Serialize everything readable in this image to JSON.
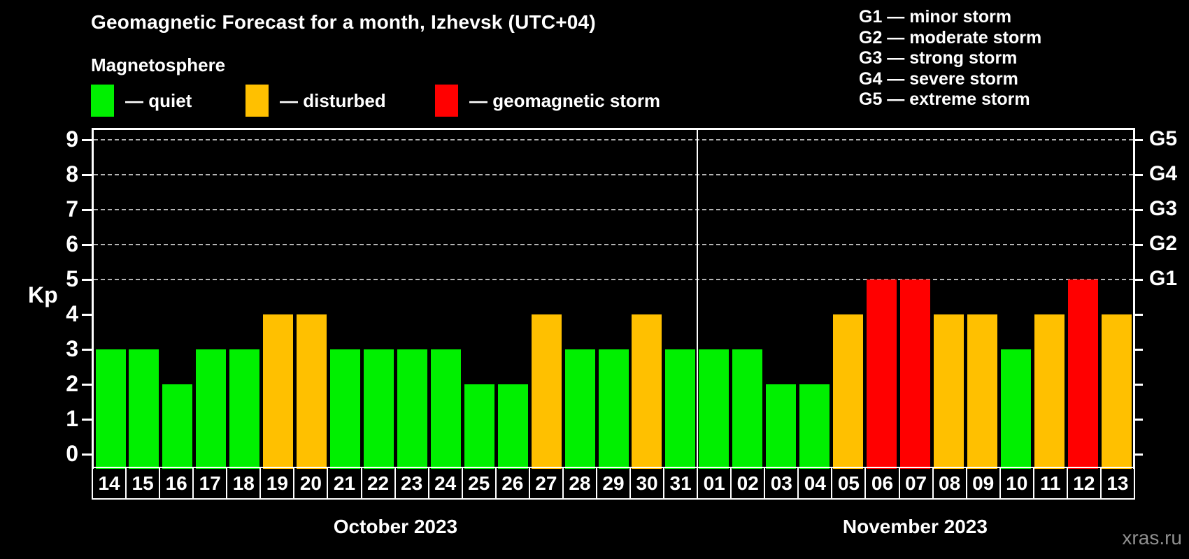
{
  "title": "Geomagnetic Forecast for a month, Izhevsk (UTC+04)",
  "subtitle": "Magnetosphere",
  "legend": {
    "items": [
      {
        "name": "quiet",
        "label": "— quiet",
        "color": "#00f000"
      },
      {
        "name": "disturbed",
        "label": "— disturbed",
        "color": "#ffc000"
      },
      {
        "name": "storm",
        "label": "— geomagnetic storm",
        "color": "#ff0000"
      }
    ]
  },
  "g_legend": {
    "lines": [
      "G1 — minor storm",
      "G2 — moderate storm",
      "G3 — strong storm",
      "G4 — severe storm",
      "G5 — extreme storm"
    ]
  },
  "watermark": "xras.ru",
  "chart_data": {
    "type": "bar",
    "ylabel": "Kp",
    "ylim": [
      0,
      9
    ],
    "y_ticks": [
      0,
      1,
      2,
      3,
      4,
      5,
      6,
      7,
      8,
      9
    ],
    "gridlines_kp": [
      5,
      6,
      7,
      8,
      9
    ],
    "grid_style": "dashed",
    "right_axis_labels": [
      {
        "label": "G1",
        "kp": 5
      },
      {
        "label": "G2",
        "kp": 6
      },
      {
        "label": "G3",
        "kp": 7
      },
      {
        "label": "G4",
        "kp": 8
      },
      {
        "label": "G5",
        "kp": 9
      }
    ],
    "status_colors": {
      "quiet": "#00f000",
      "disturbed": "#ffc000",
      "storm": "#ff0000"
    },
    "months": [
      {
        "label": "October 2023",
        "days": [
          {
            "date": "14",
            "kp": 3,
            "status": "quiet"
          },
          {
            "date": "15",
            "kp": 3,
            "status": "quiet"
          },
          {
            "date": "16",
            "kp": 2,
            "status": "quiet"
          },
          {
            "date": "17",
            "kp": 3,
            "status": "quiet"
          },
          {
            "date": "18",
            "kp": 3,
            "status": "quiet"
          },
          {
            "date": "19",
            "kp": 4,
            "status": "disturbed"
          },
          {
            "date": "20",
            "kp": 4,
            "status": "disturbed"
          },
          {
            "date": "21",
            "kp": 3,
            "status": "quiet"
          },
          {
            "date": "22",
            "kp": 3,
            "status": "quiet"
          },
          {
            "date": "23",
            "kp": 3,
            "status": "quiet"
          },
          {
            "date": "24",
            "kp": 3,
            "status": "quiet"
          },
          {
            "date": "25",
            "kp": 2,
            "status": "quiet"
          },
          {
            "date": "26",
            "kp": 2,
            "status": "quiet"
          },
          {
            "date": "27",
            "kp": 4,
            "status": "disturbed"
          },
          {
            "date": "28",
            "kp": 3,
            "status": "quiet"
          },
          {
            "date": "29",
            "kp": 3,
            "status": "quiet"
          },
          {
            "date": "30",
            "kp": 4,
            "status": "disturbed"
          },
          {
            "date": "31",
            "kp": 3,
            "status": "quiet"
          }
        ]
      },
      {
        "label": "November 2023",
        "days": [
          {
            "date": "01",
            "kp": 3,
            "status": "quiet"
          },
          {
            "date": "02",
            "kp": 3,
            "status": "quiet"
          },
          {
            "date": "03",
            "kp": 2,
            "status": "quiet"
          },
          {
            "date": "04",
            "kp": 2,
            "status": "quiet"
          },
          {
            "date": "05",
            "kp": 4,
            "status": "disturbed"
          },
          {
            "date": "06",
            "kp": 5,
            "status": "storm"
          },
          {
            "date": "07",
            "kp": 5,
            "status": "storm"
          },
          {
            "date": "08",
            "kp": 4,
            "status": "disturbed"
          },
          {
            "date": "09",
            "kp": 4,
            "status": "disturbed"
          },
          {
            "date": "10",
            "kp": 3,
            "status": "quiet"
          },
          {
            "date": "11",
            "kp": 4,
            "status": "disturbed"
          },
          {
            "date": "12",
            "kp": 5,
            "status": "storm"
          },
          {
            "date": "13",
            "kp": 4,
            "status": "disturbed"
          }
        ]
      }
    ]
  }
}
